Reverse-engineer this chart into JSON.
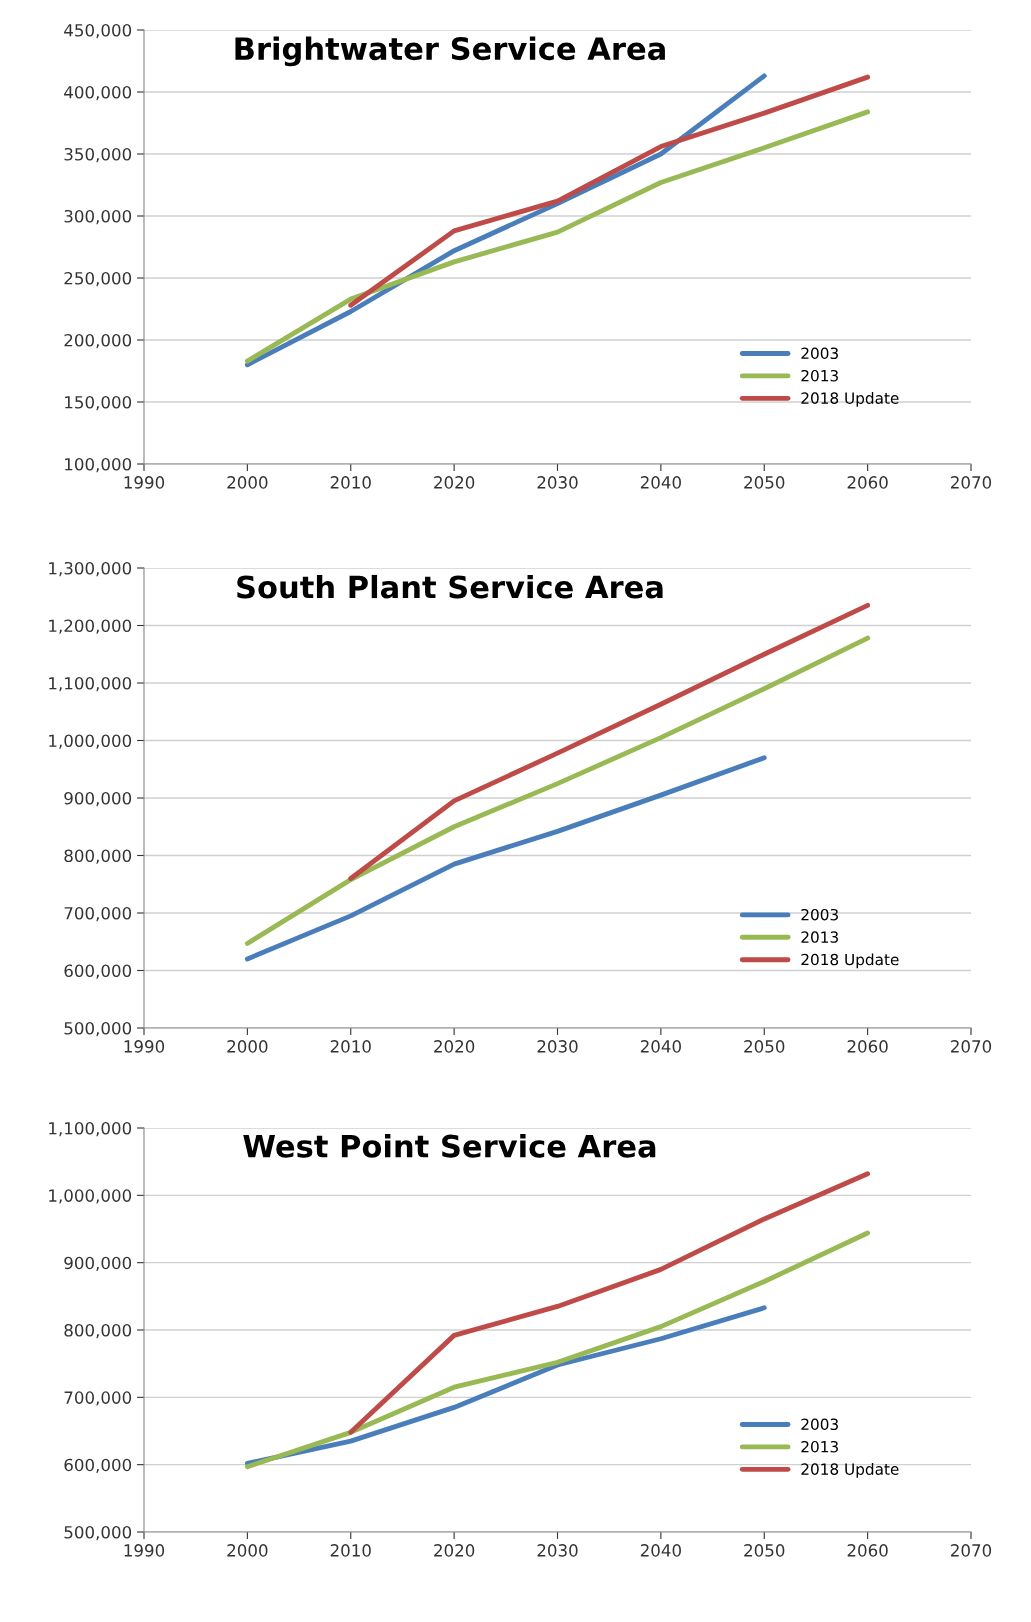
{
  "chart_data": [
    {
      "type": "line",
      "title": "Brightwater Service Area",
      "x": [
        2000,
        2010,
        2020,
        2030,
        2040,
        2050,
        2060
      ],
      "series": [
        {
          "name": "2003",
          "color": "#4a7ebb",
          "values": [
            180000,
            223000,
            272000,
            310000,
            350000,
            413000,
            null
          ]
        },
        {
          "name": "2013",
          "color": "#98b954",
          "values": [
            183000,
            233000,
            263000,
            287000,
            327000,
            355000,
            384000
          ]
        },
        {
          "name": "2018 Update",
          "color": "#be4b48",
          "values": [
            null,
            228000,
            288000,
            312000,
            356000,
            383000,
            412000
          ]
        }
      ],
      "xlim": [
        1990,
        2070
      ],
      "xticks": [
        1990,
        2000,
        2010,
        2020,
        2030,
        2040,
        2050,
        2060,
        2070
      ],
      "ylim": [
        100000,
        450000
      ],
      "yticks": [
        {
          "value": 100000,
          "label": "100,000"
        },
        {
          "value": 150000,
          "label": "150,000"
        },
        {
          "value": 200000,
          "label": "200,000"
        },
        {
          "value": 250000,
          "label": "250,000"
        },
        {
          "value": 300000,
          "label": "300,000"
        },
        {
          "value": 350000,
          "label": "350,000"
        },
        {
          "value": 400000,
          "label": "400,000"
        },
        {
          "value": 450000,
          "label": "450,000"
        }
      ],
      "grid": "y",
      "legend": "bottom right",
      "marker": "none",
      "line_style": "solid"
    },
    {
      "type": "line",
      "title": "South Plant Service Area",
      "x": [
        2000,
        2010,
        2020,
        2030,
        2040,
        2050,
        2060
      ],
      "series": [
        {
          "name": "2003",
          "color": "#4a7ebb",
          "values": [
            620000,
            695000,
            785000,
            842000,
            905000,
            970000,
            null
          ]
        },
        {
          "name": "2013",
          "color": "#98b954",
          "values": [
            647000,
            758000,
            850000,
            925000,
            1005000,
            1090000,
            1178000
          ]
        },
        {
          "name": "2018 Update",
          "color": "#be4b48",
          "values": [
            null,
            760000,
            895000,
            978000,
            1063000,
            1150000,
            1235000
          ]
        }
      ],
      "xlim": [
        1990,
        2070
      ],
      "xticks": [
        1990,
        2000,
        2010,
        2020,
        2030,
        2040,
        2050,
        2060,
        2070
      ],
      "ylim": [
        500000,
        1300000
      ],
      "yticks": [
        {
          "value": 500000,
          "label": "500,000"
        },
        {
          "value": 600000,
          "label": "600,000"
        },
        {
          "value": 700000,
          "label": "700,000"
        },
        {
          "value": 800000,
          "label": "800,000"
        },
        {
          "value": 900000,
          "label": "900,000"
        },
        {
          "value": 1000000,
          "label": "1,000,000"
        },
        {
          "value": 1100000,
          "label": "1,100,000"
        },
        {
          "value": 1200000,
          "label": "1,200,000"
        },
        {
          "value": 1300000,
          "label": "1,300,000"
        }
      ],
      "grid": "y",
      "legend": "bottom right",
      "marker": "none",
      "line_style": "solid"
    },
    {
      "type": "line",
      "title": "West Point Service Area",
      "x": [
        2000,
        2010,
        2020,
        2030,
        2040,
        2050,
        2060
      ],
      "series": [
        {
          "name": "2003",
          "color": "#4a7ebb",
          "values": [
            602000,
            635000,
            685000,
            748000,
            787000,
            833000,
            null
          ]
        },
        {
          "name": "2013",
          "color": "#98b954",
          "values": [
            597000,
            648000,
            715000,
            752000,
            805000,
            872000,
            944000
          ]
        },
        {
          "name": "2018 Update",
          "color": "#be4b48",
          "values": [
            null,
            648000,
            792000,
            835000,
            890000,
            965000,
            1032000
          ]
        }
      ],
      "xlim": [
        1990,
        2070
      ],
      "xticks": [
        1990,
        2000,
        2010,
        2020,
        2030,
        2040,
        2050,
        2060,
        2070
      ],
      "ylim": [
        500000,
        1100000
      ],
      "yticks": [
        {
          "value": 500000,
          "label": "500,000"
        },
        {
          "value": 600000,
          "label": "600,000"
        },
        {
          "value": 700000,
          "label": "700,000"
        },
        {
          "value": 800000,
          "label": "800,000"
        },
        {
          "value": 900000,
          "label": "900,000"
        },
        {
          "value": 1000000,
          "label": "1,000,000"
        },
        {
          "value": 1100000,
          "label": "1,100,000"
        }
      ],
      "grid": "y",
      "legend": "bottom right",
      "marker": "none",
      "line_style": "solid"
    }
  ]
}
